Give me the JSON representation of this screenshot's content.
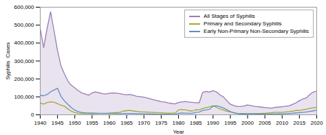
{
  "chart_data": {
    "type": "line",
    "xlabel": "Year",
    "ylabel": "Syphilis  Cases",
    "x": [
      1940,
      1941,
      1942,
      1943,
      1944,
      1945,
      1946,
      1947,
      1948,
      1949,
      1950,
      1951,
      1952,
      1953,
      1954,
      1955,
      1956,
      1957,
      1958,
      1959,
      1960,
      1961,
      1962,
      1963,
      1964,
      1965,
      1966,
      1967,
      1968,
      1969,
      1970,
      1971,
      1972,
      1973,
      1974,
      1975,
      1976,
      1977,
      1978,
      1979,
      1980,
      1981,
      1982,
      1983,
      1984,
      1985,
      1986,
      1987,
      1988,
      1989,
      1990,
      1991,
      1992,
      1993,
      1994,
      1995,
      1996,
      1997,
      1998,
      1999,
      2000,
      2001,
      2002,
      2003,
      2004,
      2005,
      2006,
      2007,
      2008,
      2009,
      2010,
      2011,
      2012,
      2013,
      2014,
      2015,
      2016,
      2017,
      2018,
      2019,
      2020
    ],
    "series": [
      {
        "name": "All Stages of Syphilis",
        "color": "#9b7bb5",
        "type": "area",
        "values": [
          480000,
          375000,
          483000,
          575000,
          468000,
          359000,
          272000,
          228000,
          188000,
          165000,
          150000,
          135000,
          122000,
          116000,
          109000,
          122000,
          128000,
          123000,
          118000,
          116000,
          120000,
          122000,
          121000,
          118000,
          114000,
          111000,
          113000,
          108000,
          103000,
          101000,
          98000,
          93000,
          88000,
          83000,
          79000,
          73000,
          71000,
          66000,
          63000,
          61000,
          68000,
          72000,
          74000,
          71000,
          69000,
          67000,
          67000,
          125000,
          130000,
          127000,
          134000,
          128000,
          111000,
          100000,
          79000,
          59000,
          52000,
          46000,
          46000,
          49000,
          55000,
          51000,
          47000,
          45000,
          43000,
          41000,
          39000,
          37000,
          42000,
          43000,
          45000,
          47000,
          50000,
          58000,
          67000,
          79000,
          88000,
          94000,
          113000,
          127000,
          132000
        ]
      },
      {
        "name": "Primary and Secondary Syphilis",
        "color": "#a0a832",
        "type": "line",
        "values": [
          65000,
          60000,
          68000,
          72000,
          70000,
          62000,
          53000,
          48000,
          33000,
          20000,
          13000,
          9000,
          7500,
          6800,
          6200,
          6000,
          6500,
          7000,
          7500,
          8500,
          9500,
          11000,
          12500,
          13000,
          21000,
          23000,
          24000,
          21000,
          19000,
          17000,
          16000,
          15000,
          14000,
          13000,
          12000,
          11000,
          10000,
          9000,
          9000,
          9000,
          27000,
          29000,
          27000,
          23000,
          21000,
          28000,
          27000,
          35000,
          40000,
          44000,
          50000,
          42000,
          33000,
          26000,
          20000,
          16000,
          11500,
          8000,
          7000,
          7000,
          6000,
          6400,
          6800,
          7200,
          7600,
          8500,
          9800,
          11500,
          14000,
          13500,
          14000,
          15700,
          17500,
          20000,
          23900,
          23800,
          27800,
          30600,
          35800,
          39000,
          41700
        ]
      },
      {
        "name": "Early Non-Primary Non-Secondary Syphilis",
        "color": "#5b8ec4",
        "type": "line",
        "values": [
          108000,
          106000,
          113000,
          128000,
          138000,
          148000,
          103000,
          78000,
          58000,
          40000,
          26000,
          18000,
          13000,
          11000,
          10000,
          9500,
          9000,
          8500,
          8000,
          7500,
          7500,
          7000,
          6500,
          6500,
          7000,
          7000,
          7500,
          7000,
          6500,
          6000,
          5500,
          5000,
          4500,
          4000,
          3500,
          3000,
          2800,
          2800,
          2500,
          2500,
          8500,
          9500,
          9000,
          8500,
          8000,
          14000,
          15000,
          24000,
          27000,
          31000,
          48000,
          50000,
          45000,
          38000,
          28000,
          18000,
          11000,
          6500,
          4800,
          4800,
          5200,
          5700,
          5200,
          4800,
          4500,
          4300,
          4000,
          3800,
          4200,
          4700,
          5200,
          6200,
          7200,
          8600,
          10500,
          11500,
          13500,
          15500,
          19000,
          22000,
          26000
        ]
      }
    ],
    "xlim": [
      1940,
      2020
    ],
    "ylim": [
      0,
      600000
    ],
    "xticks": [
      1940,
      1945,
      1950,
      1955,
      1960,
      1965,
      1970,
      1975,
      1980,
      1985,
      1990,
      1995,
      2000,
      2005,
      2010,
      2015,
      2020
    ],
    "yticks": [
      0,
      {
        "value": 100000,
        "label": "100,000"
      },
      {
        "value": 200000,
        "label": "200,000"
      },
      {
        "value": 300000,
        "label": "300,000"
      },
      {
        "value": 400000,
        "label": "400,000"
      },
      {
        "value": 500000,
        "label": "500,000"
      },
      {
        "value": 600000,
        "label": "600,000"
      }
    ],
    "grid": false,
    "legend": "upper right"
  }
}
